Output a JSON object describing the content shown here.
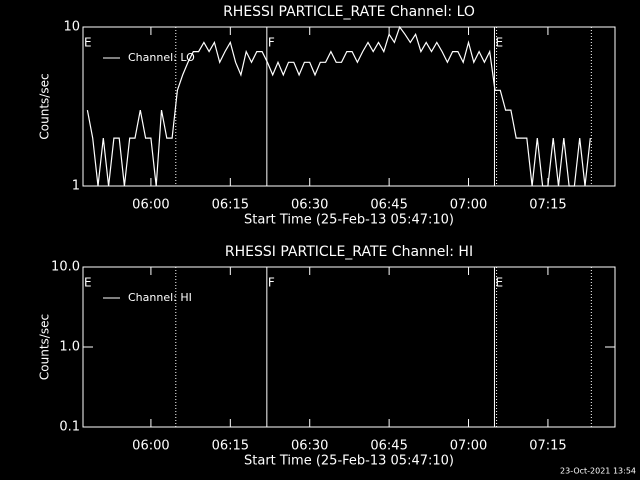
{
  "chart_data": [
    {
      "type": "line",
      "title": "RHESSI PARTICLE_RATE Channel: LO",
      "ylabel": "Counts/sec",
      "xlabel": "Start Time (25-Feb-13 05:47:10)",
      "log_y": true,
      "ylim": [
        1,
        10
      ],
      "yticks": [
        1,
        10
      ],
      "xlim": [
        347.17,
        447.67
      ],
      "xticks": [
        {
          "value": 360,
          "label": "06:00"
        },
        {
          "value": 375,
          "label": "06:15"
        },
        {
          "value": 390,
          "label": "06:30"
        },
        {
          "value": 405,
          "label": "06:45"
        },
        {
          "value": 420,
          "label": "07:00"
        },
        {
          "value": 435,
          "label": "07:15"
        }
      ],
      "x": [
        348,
        349,
        350,
        351,
        352,
        353,
        354,
        355,
        356,
        357,
        358,
        359,
        360,
        361,
        362,
        363,
        364,
        365,
        366,
        367,
        368,
        369,
        370,
        371,
        372,
        373,
        374,
        375,
        376,
        377,
        378,
        379,
        380,
        381,
        382,
        383,
        384,
        385,
        386,
        387,
        388,
        389,
        390,
        391,
        392,
        393,
        394,
        395,
        396,
        397,
        398,
        399,
        400,
        401,
        402,
        403,
        404,
        405,
        406,
        407,
        408,
        409,
        410,
        411,
        412,
        413,
        414,
        415,
        416,
        417,
        418,
        419,
        420,
        421,
        422,
        423,
        424,
        425,
        426,
        427,
        428,
        429,
        430,
        431,
        432,
        433,
        434,
        435,
        436,
        437,
        438,
        439,
        440,
        441,
        442,
        443
      ],
      "series": [
        {
          "name": "Channel: LO",
          "color": "#ffffff",
          "values": [
            3,
            2,
            1,
            2,
            1,
            2,
            2,
            1,
            2,
            2,
            3,
            2,
            2,
            1,
            3,
            2,
            2,
            4,
            5,
            6,
            7,
            7,
            8,
            7,
            8,
            6,
            7,
            8,
            6,
            5,
            7,
            6,
            7,
            7,
            6,
            5,
            6,
            5,
            6,
            6,
            5,
            6,
            6,
            5,
            6,
            6,
            7,
            6,
            6,
            7,
            7,
            6,
            7,
            8,
            7,
            8,
            7,
            9,
            8,
            10,
            9,
            8,
            9,
            7,
            8,
            7,
            8,
            7,
            6,
            7,
            7,
            6,
            8,
            6,
            7,
            6,
            7,
            4,
            4,
            3,
            3,
            2,
            2,
            2,
            1,
            2,
            1,
            1,
            2,
            1,
            2,
            1,
            1,
            2,
            1,
            2
          ]
        }
      ],
      "markers": [
        {
          "x": 364.7,
          "style": "dotted"
        },
        {
          "x": 381.9,
          "style": "solid"
        },
        {
          "x": 424.9,
          "style": "solid"
        },
        {
          "x": 425.3,
          "style": "dotted"
        },
        {
          "x": 443.2,
          "style": "dotted"
        }
      ],
      "annotations": [
        {
          "text": "E",
          "x": 347.17
        },
        {
          "text": "F",
          "x": 381.9
        },
        {
          "text": "E",
          "x": 424.9
        }
      ]
    },
    {
      "type": "line",
      "title": "RHESSI PARTICLE_RATE Channel: HI",
      "ylabel": "Counts/sec",
      "xlabel": "Start Time (25-Feb-13 05:47:10)",
      "log_y": true,
      "ylim": [
        0.1,
        10
      ],
      "yticks": [
        0.1,
        {
          "value": 1,
          "label": "1.0"
        },
        {
          "value": 10,
          "label": "10.0"
        }
      ],
      "xlim": [
        347.17,
        447.67
      ],
      "xticks": [
        {
          "value": 360,
          "label": "06:00"
        },
        {
          "value": 375,
          "label": "06:15"
        },
        {
          "value": 390,
          "label": "06:30"
        },
        {
          "value": 405,
          "label": "06:45"
        },
        {
          "value": 420,
          "label": "07:00"
        },
        {
          "value": 435,
          "label": "07:15"
        }
      ],
      "x": [],
      "series": [
        {
          "name": "Channel: HI",
          "color": "#ffffff",
          "values": []
        }
      ],
      "markers": [
        {
          "x": 364.7,
          "style": "dotted"
        },
        {
          "x": 381.9,
          "style": "solid"
        },
        {
          "x": 424.9,
          "style": "solid"
        },
        {
          "x": 425.3,
          "style": "dotted"
        },
        {
          "x": 443.2,
          "style": "dotted"
        }
      ],
      "annotations": [
        {
          "text": "E",
          "x": 347.17
        },
        {
          "text": "F",
          "x": 381.9
        },
        {
          "text": "E",
          "x": 424.9
        }
      ]
    }
  ],
  "footer": "23-Oct-2021 13:54"
}
